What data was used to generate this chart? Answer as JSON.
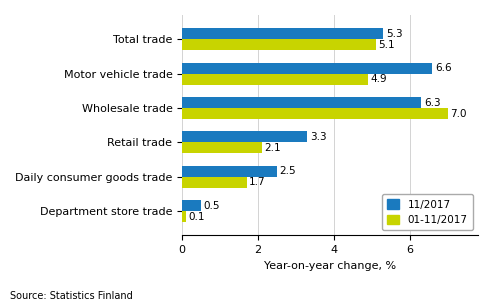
{
  "categories": [
    "Total trade",
    "Motor vehicle trade",
    "Wholesale trade",
    "Retail trade",
    "Daily consumer goods trade",
    "Department store trade"
  ],
  "values_nov": [
    5.3,
    6.6,
    6.3,
    3.3,
    2.5,
    0.5
  ],
  "values_jan_nov": [
    5.1,
    4.9,
    7.0,
    2.1,
    1.7,
    0.1
  ],
  "color_nov": "#1a7abf",
  "color_jan_nov": "#c8d400",
  "legend_nov": "11/2017",
  "legend_jan_nov": "01-11/2017",
  "xlabel": "Year-on-year change, %",
  "source": "Source: Statistics Finland",
  "xlim": [
    0,
    7.8
  ],
  "xticks": [
    0,
    2,
    4,
    6
  ],
  "bar_height": 0.32,
  "label_fontsize": 8,
  "tick_fontsize": 8,
  "value_fontsize": 7.5
}
